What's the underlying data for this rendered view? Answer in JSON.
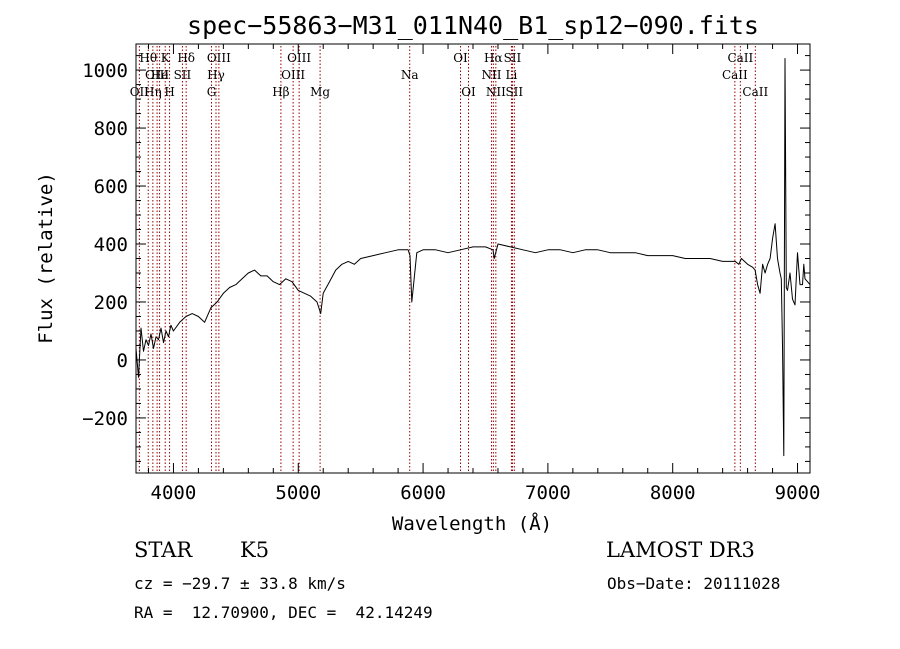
{
  "chart_data": {
    "type": "line",
    "title": "spec−55863−M31_011N40_B1_sp12−090.fits",
    "xlabel": "Wavelength (Å)",
    "ylabel": "Flux (relative)",
    "xlim": [
      3700,
      9100
    ],
    "ylim": [
      -390,
      1090
    ],
    "xticks": [
      4000,
      5000,
      6000,
      7000,
      8000,
      9000
    ],
    "yticks": [
      -200,
      0,
      200,
      400,
      600,
      800,
      1000
    ],
    "tick_labels_y": [
      "−200",
      "0",
      "200",
      "400",
      "600",
      "800",
      "1000"
    ],
    "grid": false,
    "line_color": "#000000",
    "marker_color": "#990000",
    "series": [
      {
        "name": "flux",
        "x": [
          3700,
          3720,
          3740,
          3760,
          3780,
          3800,
          3820,
          3840,
          3860,
          3880,
          3900,
          3920,
          3940,
          3960,
          3980,
          4000,
          4050,
          4100,
          4150,
          4200,
          4250,
          4300,
          4350,
          4400,
          4450,
          4500,
          4550,
          4600,
          4650,
          4700,
          4750,
          4800,
          4850,
          4900,
          4950,
          5000,
          5050,
          5100,
          5150,
          5180,
          5200,
          5250,
          5300,
          5350,
          5400,
          5450,
          5500,
          5600,
          5700,
          5800,
          5880,
          5895,
          5910,
          5950,
          6000,
          6100,
          6200,
          6300,
          6400,
          6500,
          6560,
          6570,
          6600,
          6700,
          6800,
          6900,
          7000,
          7100,
          7200,
          7300,
          7400,
          7500,
          7600,
          7700,
          7800,
          7900,
          8000,
          8100,
          8200,
          8300,
          8400,
          8450,
          8500,
          8530,
          8550,
          8600,
          8640,
          8660,
          8680,
          8700,
          8720,
          8740,
          8760,
          8780,
          8800,
          8820,
          8840,
          8860,
          8870,
          8880,
          8890,
          8900,
          8910,
          8920,
          8940,
          8960,
          8980,
          9000,
          9020,
          9040,
          9050,
          9060,
          9080,
          9100
        ],
        "y": [
          40,
          -60,
          110,
          30,
          70,
          50,
          90,
          40,
          80,
          70,
          110,
          60,
          100,
          80,
          120,
          100,
          130,
          150,
          160,
          150,
          130,
          180,
          200,
          230,
          250,
          260,
          280,
          300,
          310,
          290,
          290,
          270,
          260,
          280,
          270,
          240,
          230,
          220,
          200,
          160,
          230,
          270,
          310,
          330,
          340,
          330,
          350,
          360,
          370,
          380,
          380,
          360,
          200,
          370,
          380,
          380,
          370,
          380,
          390,
          390,
          380,
          350,
          400,
          390,
          380,
          370,
          380,
          380,
          370,
          380,
          380,
          370,
          370,
          370,
          360,
          360,
          360,
          350,
          350,
          350,
          340,
          340,
          340,
          330,
          350,
          330,
          320,
          310,
          260,
          230,
          330,
          300,
          330,
          350,
          420,
          470,
          350,
          300,
          280,
          50,
          -330,
          1040,
          250,
          240,
          300,
          210,
          190,
          370,
          260,
          260,
          330,
          280,
          270,
          260
        ]
      }
    ],
    "lines": [
      {
        "name": "Hθ",
        "wave": 3798,
        "row": 1
      },
      {
        "name": "OII",
        "wave": 3727,
        "row": 3
      },
      {
        "name": "OIII",
        "wave": 3869,
        "row": 2
      },
      {
        "name": "Hη",
        "wave": 3835,
        "row": 3
      },
      {
        "name": "K",
        "wave": 3934,
        "row": 1
      },
      {
        "name": "He",
        "wave": 3889,
        "row": 2
      },
      {
        "name": "H",
        "wave": 3969,
        "row": 3
      },
      {
        "name": "SII",
        "wave": 4072,
        "row": 2
      },
      {
        "name": "Hδ",
        "wave": 4102,
        "row": 1
      },
      {
        "name": "OIII",
        "wave": 4364,
        "row": 1
      },
      {
        "name": "Hγ",
        "wave": 4341,
        "row": 2
      },
      {
        "name": "G",
        "wave": 4305,
        "row": 3
      },
      {
        "name": "Hβ",
        "wave": 4861,
        "row": 3
      },
      {
        "name": "OIII",
        "wave": 5007,
        "row": 1
      },
      {
        "name": "OIII",
        "wave": 4959,
        "row": 2
      },
      {
        "name": "Mg",
        "wave": 5175,
        "row": 3
      },
      {
        "name": "Na",
        "wave": 5893,
        "row": 2
      },
      {
        "name": "OI",
        "wave": 6300,
        "row": 1
      },
      {
        "name": "OI",
        "wave": 6364,
        "row": 3
      },
      {
        "name": "Hα",
        "wave": 6563,
        "row": 1
      },
      {
        "name": "NII",
        "wave": 6548,
        "row": 2
      },
      {
        "name": "NII",
        "wave": 6583,
        "row": 3
      },
      {
        "name": "SII",
        "wave": 6716,
        "row": 1
      },
      {
        "name": "Li",
        "wave": 6708,
        "row": 2
      },
      {
        "name": "SII",
        "wave": 6731,
        "row": 3
      },
      {
        "name": "CaII",
        "wave": 8542,
        "row": 1
      },
      {
        "name": "CaII",
        "wave": 8498,
        "row": 2
      },
      {
        "name": "CaII",
        "wave": 8662,
        "row": 3
      }
    ]
  },
  "info": {
    "object_class": "STAR",
    "subclass": "K5",
    "survey": "LAMOST DR3",
    "redshift": "cz = −29.7 ± 33.8 km/s",
    "obs_date": "Obs−Date: 20111028",
    "coords": "RA =  12.70900, DEC =  42.14249"
  }
}
